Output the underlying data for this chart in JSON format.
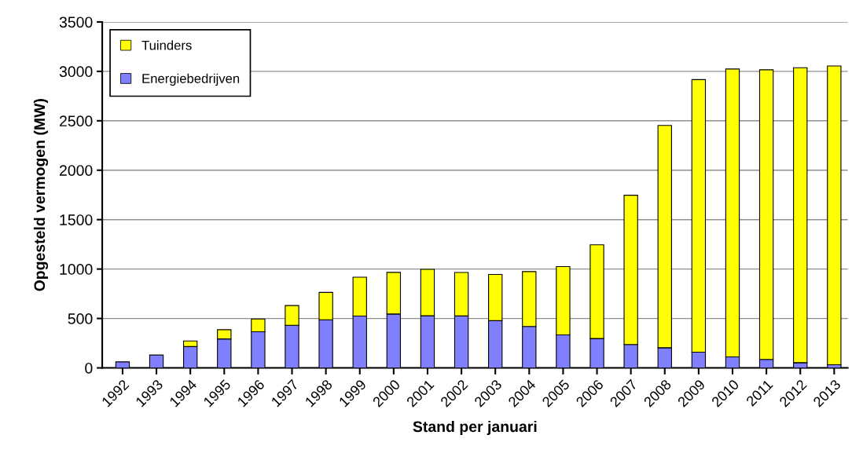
{
  "chart_data": {
    "type": "bar",
    "stacked": true,
    "xlabel": "Stand per januari",
    "ylabel": "Opgesteld vermogen (MW)",
    "categories": [
      "1992",
      "1993",
      "1994",
      "1995",
      "1996",
      "1997",
      "1998",
      "1999",
      "2000",
      "2001",
      "2002",
      "2003",
      "2004",
      "2005",
      "2006",
      "2007",
      "2008",
      "2009",
      "2010",
      "2011",
      "2012",
      "2013"
    ],
    "series": [
      {
        "name": "Energiebedrijven",
        "color": "#8080ff",
        "values": [
          61,
          130,
          216,
          293,
          365,
          431,
          487,
          524,
          545,
          527,
          525,
          478,
          419,
          334,
          297,
          236,
          204,
          159,
          111,
          85,
          53,
          32
        ]
      },
      {
        "name": "Tuinders",
        "color": "#ffff00",
        "values": [
          null,
          null,
          56,
          93,
          130,
          200,
          277,
          394,
          421,
          470,
          440,
          467,
          555,
          691,
          948,
          1511,
          2249,
          2758,
          2913,
          2931,
          2984,
          3023
        ]
      }
    ],
    "ylim": [
      0,
      3500
    ],
    "yticks": [
      0,
      500,
      1000,
      1500,
      2000,
      2500,
      3000,
      3500
    ],
    "grid": "y",
    "legend": "top left"
  }
}
